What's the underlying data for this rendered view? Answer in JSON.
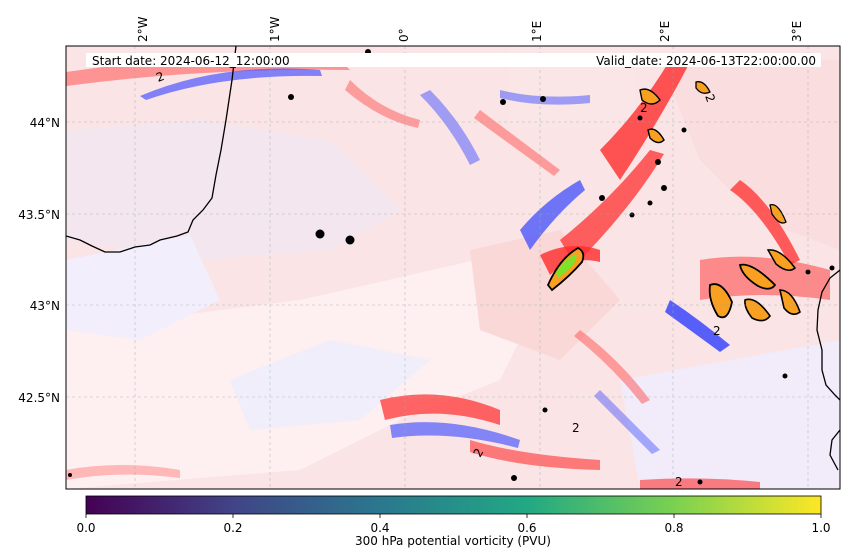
{
  "banner": {
    "start_date": "Start date: 2024-06-12_12:00:00",
    "valid_date": "Valid_date: 2024-06-13T22:00:00.00"
  },
  "axes": {
    "lon_ticks": [
      "2°W",
      "1°W",
      "0°",
      "1°E",
      "2°E",
      "3°E"
    ],
    "lat_ticks": [
      "44°N",
      "43.5°N",
      "43°N",
      "42.5°N"
    ],
    "gridlines": true
  },
  "colorbar": {
    "label": "300 hPa potential vorticity (PVU)",
    "ticks": [
      "0.0",
      "0.2",
      "0.4",
      "0.6",
      "0.8",
      "1.0"
    ],
    "colormap": [
      "#440154",
      "#414487",
      "#2a788e",
      "#22a884",
      "#7ad151",
      "#fde725"
    ]
  },
  "contour_labels": [
    "2",
    "2",
    "2",
    "2",
    "2",
    "2",
    "2"
  ],
  "field_colors": {
    "positive": "#ff0000",
    "negative": "#0000ff",
    "neutral": "#f2f2ff",
    "coast": "#000000"
  }
}
